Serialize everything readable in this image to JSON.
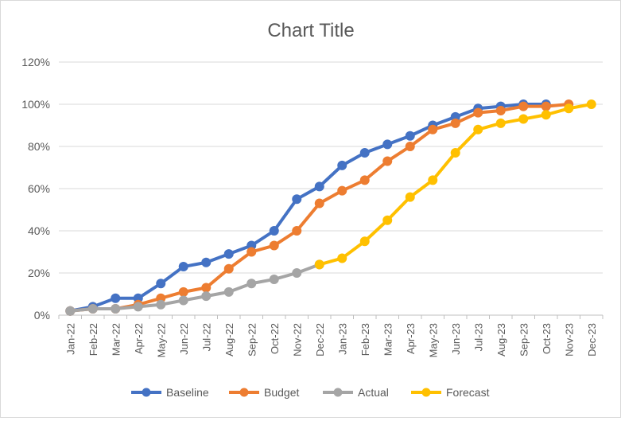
{
  "chart_data": {
    "type": "line",
    "title": "Chart Title",
    "xlabel": "",
    "ylabel": "",
    "ylim": [
      0,
      1.2
    ],
    "yticks": [
      "0%",
      "20%",
      "40%",
      "60%",
      "80%",
      "100%",
      "120%"
    ],
    "categories": [
      "Jan-22",
      "Feb-22",
      "Mar-22",
      "Apr-22",
      "May-22",
      "Jun-22",
      "Jul-22",
      "Aug-22",
      "Sep-22",
      "Oct-22",
      "Nov-22",
      "Dec-22",
      "Jan-23",
      "Feb-23",
      "Mar-23",
      "Apr-23",
      "May-23",
      "Jun-23",
      "Jul-23",
      "Aug-23",
      "Sep-23",
      "Oct-23",
      "Nov-23",
      "Dec-23"
    ],
    "grid": true,
    "legend_position": "bottom",
    "series": [
      {
        "name": "Baseline",
        "color": "#4472c4",
        "values": [
          0.02,
          0.04,
          0.08,
          0.08,
          0.15,
          0.23,
          0.25,
          0.29,
          0.33,
          0.4,
          0.55,
          0.61,
          0.71,
          0.77,
          0.81,
          0.85,
          0.9,
          0.94,
          0.98,
          0.99,
          1.0,
          1.0,
          null,
          null
        ]
      },
      {
        "name": "Budget",
        "color": "#ed7d31",
        "values": [
          0.02,
          0.03,
          0.03,
          0.05,
          0.08,
          0.11,
          0.13,
          0.22,
          0.3,
          0.33,
          0.4,
          0.53,
          0.59,
          0.64,
          0.73,
          0.8,
          0.88,
          0.91,
          0.96,
          0.97,
          0.99,
          0.99,
          1.0,
          null
        ]
      },
      {
        "name": "Actual",
        "color": "#a5a5a5",
        "values": [
          0.02,
          0.03,
          0.03,
          0.04,
          0.05,
          0.07,
          0.09,
          0.11,
          0.15,
          0.17,
          0.2,
          0.24,
          null,
          null,
          null,
          null,
          null,
          null,
          null,
          null,
          null,
          null,
          null,
          null
        ]
      },
      {
        "name": "Forecast",
        "color": "#ffc000",
        "values": [
          null,
          null,
          null,
          null,
          null,
          null,
          null,
          null,
          null,
          null,
          null,
          0.24,
          0.27,
          0.35,
          0.45,
          0.56,
          0.64,
          0.77,
          0.88,
          0.91,
          0.93,
          0.95,
          0.98,
          1.0
        ]
      }
    ]
  }
}
